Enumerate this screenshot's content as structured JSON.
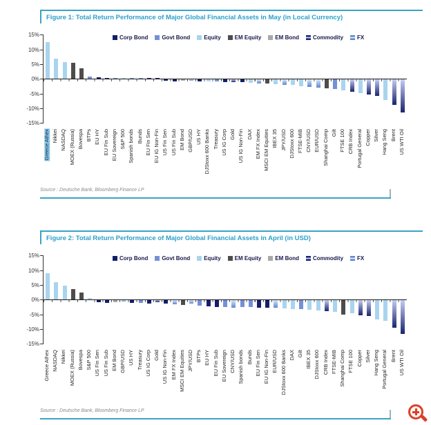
{
  "figures": [
    {
      "title": "Figure 1: Total Return Performance of Major Global Financial Assets in May (in Local Currency)",
      "source": "Source : Deutsche Bank, Bloomberg Finance LP"
    },
    {
      "title": "Figure 2: Total Return Performance of Major Global Financial Assets in April (in USD)",
      "source": "Source : Deutsche Bank, Bloomberg Finance LP"
    }
  ],
  "icons": {
    "zoom_in_color": "#d9412b"
  },
  "accent": {
    "teal_border": "#3aa2c6",
    "title_text": "#2e9fc9"
  },
  "chart_data": [
    {
      "type": "bar",
      "title": "Figure 1: Total Return Performance of Major Global Financial Assets in May (in Local Currency)",
      "xlabel": "",
      "ylabel": "",
      "ylim": [
        -15,
        15
      ],
      "ytick_step": 5,
      "grid": false,
      "legend_position": "top-center",
      "highlighted_category": "Greece Athex",
      "legend": [
        {
          "label": "Corp Bond",
          "key": "corp_bond",
          "color": "#131f6b"
        },
        {
          "label": "Govt Bond",
          "key": "govt_bond",
          "color": "#7390d8"
        },
        {
          "label": "Equity",
          "key": "equity",
          "color": "#a9d4ee"
        },
        {
          "label": "EM Equity",
          "key": "em_equity",
          "color": "#4d4d4d"
        },
        {
          "label": "EM Bond",
          "key": "em_bond",
          "color": "#a9a9a9"
        },
        {
          "label": "Commodity",
          "key": "commodity",
          "color": "#1a246e",
          "gradient": [
            "#1a246e",
            "#c4cdf2"
          ]
        },
        {
          "label": "FX",
          "key": "fx",
          "color": "#5f87cc",
          "gradient": [
            "#5f87cc",
            "#d8e8f8"
          ]
        }
      ],
      "points": [
        {
          "label": "Greece Athex",
          "category": "equity",
          "value": 12.4
        },
        {
          "label": "Nikkei",
          "category": "equity",
          "value": 7.0
        },
        {
          "label": "NASDAQ",
          "category": "equity",
          "value": 5.8
        },
        {
          "label": "MOEX (Russia)",
          "category": "em_equity",
          "value": 5.4
        },
        {
          "label": "Bovespa",
          "category": "em_equity",
          "value": 3.7
        },
        {
          "label": "BTPs",
          "category": "govt_bond",
          "value": 0.7
        },
        {
          "label": "EU HY",
          "category": "corp_bond",
          "value": 0.6
        },
        {
          "label": "EU Fin Sub",
          "category": "corp_bond",
          "value": 0.4
        },
        {
          "label": "EU Sovereign",
          "category": "govt_bond",
          "value": 0.4
        },
        {
          "label": "S&P 500",
          "category": "equity",
          "value": 0.3
        },
        {
          "label": "Spanish bonds",
          "category": "govt_bond",
          "value": 0.3
        },
        {
          "label": "Bunds",
          "category": "govt_bond",
          "value": 0.2
        },
        {
          "label": "EU Fin Sen",
          "category": "corp_bond",
          "value": 0.2
        },
        {
          "label": "EU IG Non-Fin",
          "category": "corp_bond",
          "value": 0.1
        },
        {
          "label": "US Fin Sen",
          "category": "corp_bond",
          "value": -0.4
        },
        {
          "label": "US Fin Sub",
          "category": "corp_bond",
          "value": -0.5
        },
        {
          "label": "EM Bond",
          "category": "em_bond",
          "value": -0.4
        },
        {
          "label": "GBP/USD",
          "category": "fx",
          "value": -0.3
        },
        {
          "label": "US HY",
          "category": "corp_bond",
          "value": -0.7
        },
        {
          "label": "DJStoxx 600 Banks",
          "category": "equity",
          "value": -0.7
        },
        {
          "label": "Treasury",
          "category": "govt_bond",
          "value": -0.7
        },
        {
          "label": "US IG Corp",
          "category": "corp_bond",
          "value": -0.8
        },
        {
          "label": "Gold",
          "category": "commodity",
          "value": -0.9
        },
        {
          "label": "US IG Non-Fin",
          "category": "corp_bond",
          "value": -0.9
        },
        {
          "label": "DAX",
          "category": "equity",
          "value": -1.1
        },
        {
          "label": "EM FX Index",
          "category": "fx",
          "value": -1.2
        },
        {
          "label": "MSCI EM Equities",
          "category": "em_equity",
          "value": -1.4
        },
        {
          "label": "IBEX 35",
          "category": "equity",
          "value": -1.6
        },
        {
          "label": "JPY/USD",
          "category": "fx",
          "value": -1.7
        },
        {
          "label": "DJStoxx 600",
          "category": "equity",
          "value": -1.9
        },
        {
          "label": "FTSE-MIB",
          "category": "equity",
          "value": -2.2
        },
        {
          "label": "CNY/USD",
          "category": "fx",
          "value": -2.4
        },
        {
          "label": "EUR/USD",
          "category": "fx",
          "value": -2.7
        },
        {
          "label": "Shanghai Comp",
          "category": "em_equity",
          "value": -3.0
        },
        {
          "label": "Gilt",
          "category": "govt_bond",
          "value": -3.3
        },
        {
          "label": "FTSE 100",
          "category": "equity",
          "value": -3.7
        },
        {
          "label": "CRB Index",
          "category": "commodity",
          "value": -4.2
        },
        {
          "label": "Portugal General",
          "category": "equity",
          "value": -4.6
        },
        {
          "label": "Copper",
          "category": "commodity",
          "value": -5.1
        },
        {
          "label": "Silver",
          "category": "commodity",
          "value": -5.6
        },
        {
          "label": "Hang Seng",
          "category": "equity",
          "value": -6.9
        },
        {
          "label": "Brent",
          "category": "commodity",
          "value": -8.6
        },
        {
          "label": "US WTI Oil",
          "category": "commodity",
          "value": -11.1
        }
      ]
    },
    {
      "type": "bar",
      "title": "Figure 2: Total Return Performance of Major Global Financial Assets in April (in USD)",
      "xlabel": "",
      "ylabel": "",
      "ylim": [
        -15,
        15
      ],
      "ytick_step": 5,
      "grid": false,
      "legend_position": "top-center",
      "highlighted_category": null,
      "legend": [
        {
          "label": "Corp Bond",
          "key": "corp_bond",
          "color": "#131f6b"
        },
        {
          "label": "Govt Bond",
          "key": "govt_bond",
          "color": "#7390d8"
        },
        {
          "label": "Equity",
          "key": "equity",
          "color": "#a9d4ee"
        },
        {
          "label": "EM Equity",
          "key": "em_equity",
          "color": "#4d4d4d"
        },
        {
          "label": "EM Bond",
          "key": "em_bond",
          "color": "#a9a9a9"
        },
        {
          "label": "Commodity",
          "key": "commodity",
          "color": "#1a246e",
          "gradient": [
            "#1a246e",
            "#c4cdf2"
          ]
        },
        {
          "label": "FX",
          "key": "fx",
          "color": "#5f87cc",
          "gradient": [
            "#5f87cc",
            "#d8e8f8"
          ]
        }
      ],
      "points": [
        {
          "label": "Greece Athex",
          "category": "equity",
          "value": 9.1
        },
        {
          "label": "NASDAQ",
          "category": "equity",
          "value": 5.9
        },
        {
          "label": "Nikkei",
          "category": "equity",
          "value": 4.7
        },
        {
          "label": "MOEX (Russia)",
          "category": "em_equity",
          "value": 3.6
        },
        {
          "label": "Bovespa",
          "category": "em_equity",
          "value": 2.4
        },
        {
          "label": "S&P 500",
          "category": "equity",
          "value": 0.5
        },
        {
          "label": "US Fin Sen",
          "category": "corp_bond",
          "value": -0.7
        },
        {
          "label": "US Fin Sub",
          "category": "corp_bond",
          "value": -0.8
        },
        {
          "label": "EM Bond",
          "category": "em_bond",
          "value": -0.7
        },
        {
          "label": "GBP/USD",
          "category": "fx",
          "value": -0.4
        },
        {
          "label": "US HY",
          "category": "corp_bond",
          "value": -0.9
        },
        {
          "label": "Treasury",
          "category": "govt_bond",
          "value": -0.8
        },
        {
          "label": "US IG Corp",
          "category": "corp_bond",
          "value": -1.0
        },
        {
          "label": "Gold",
          "category": "commodity",
          "value": -0.6
        },
        {
          "label": "US IG Non-Fin",
          "category": "corp_bond",
          "value": -1.1
        },
        {
          "label": "EM FX Index",
          "category": "fx",
          "value": -1.2
        },
        {
          "label": "MSCI EM Equities",
          "category": "em_equity",
          "value": -1.5
        },
        {
          "label": "JPY/USD",
          "category": "fx",
          "value": -1.1
        },
        {
          "label": "BTPs",
          "category": "govt_bond",
          "value": -1.8
        },
        {
          "label": "EU HY",
          "category": "corp_bond",
          "value": -2.0
        },
        {
          "label": "EU Fin Sub",
          "category": "corp_bond",
          "value": -2.2
        },
        {
          "label": "EU Sovereign",
          "category": "govt_bond",
          "value": -2.2
        },
        {
          "label": "CNY/USD",
          "category": "fx",
          "value": -2.4
        },
        {
          "label": "Spanish bonds",
          "category": "govt_bond",
          "value": -2.3
        },
        {
          "label": "Bunds",
          "category": "govt_bond",
          "value": -2.2
        },
        {
          "label": "EU Fin Sen",
          "category": "corp_bond",
          "value": -2.5
        },
        {
          "label": "EU IG Non-Fin",
          "category": "corp_bond",
          "value": -2.6
        },
        {
          "label": "EUR/USD",
          "category": "fx",
          "value": -2.6
        },
        {
          "label": "DJStoxx 600 Banks",
          "category": "equity",
          "value": -2.8
        },
        {
          "label": "DAX",
          "category": "equity",
          "value": -2.9
        },
        {
          "label": "Gilt",
          "category": "govt_bond",
          "value": -3.0
        },
        {
          "label": "IBEX 35",
          "category": "equity",
          "value": -3.2
        },
        {
          "label": "DJStoxx 600",
          "category": "equity",
          "value": -3.4
        },
        {
          "label": "CRB Index",
          "category": "commodity",
          "value": -3.7
        },
        {
          "label": "FTSE-MIB",
          "category": "equity",
          "value": -4.0
        },
        {
          "label": "Shanghai Comp",
          "category": "em_equity",
          "value": -4.9
        },
        {
          "label": "FTSE 100",
          "category": "equity",
          "value": -4.4
        },
        {
          "label": "Copper",
          "category": "commodity",
          "value": -5.1
        },
        {
          "label": "Silver",
          "category": "commodity",
          "value": -5.3
        },
        {
          "label": "Hang Seng",
          "category": "equity",
          "value": -6.4
        },
        {
          "label": "Portugal General",
          "category": "equity",
          "value": -7.0
        },
        {
          "label": "Brent",
          "category": "commodity",
          "value": -9.2
        },
        {
          "label": "US WTI Oil",
          "category": "commodity",
          "value": -11.5
        }
      ]
    }
  ]
}
